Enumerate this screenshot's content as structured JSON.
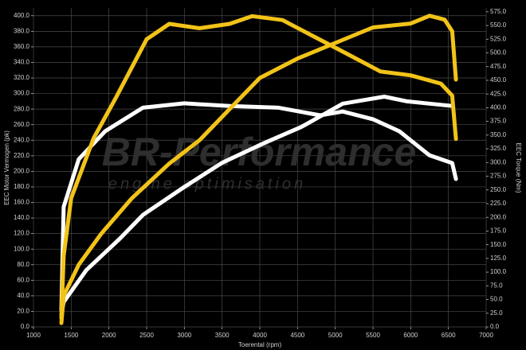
{
  "chart_data": {
    "type": "line",
    "xlabel": "Toerental (rpm)",
    "ylabel": "EEC Motor Vermogen (pk)",
    "y2label": "EEC Torque (Nm)",
    "watermark": [
      "BR-Performance",
      "engine optimisation"
    ],
    "grid": true,
    "xlim": [
      1000,
      7000
    ],
    "xticks": [
      1000,
      1500,
      2000,
      2500,
      3000,
      3500,
      4000,
      4500,
      5000,
      5500,
      6000,
      6500,
      7000
    ],
    "ylim": [
      0,
      410
    ],
    "yticks": [
      {
        "value": 0,
        "label": "0.0"
      },
      {
        "value": 20,
        "label": "20.0"
      },
      {
        "value": 40,
        "label": "40.0"
      },
      {
        "value": 60,
        "label": "60.0"
      },
      {
        "value": 80,
        "label": "80.0"
      },
      {
        "value": 100,
        "label": "100.0"
      },
      {
        "value": 120,
        "label": "120.0"
      },
      {
        "value": 140,
        "label": "140.0"
      },
      {
        "value": 160,
        "label": "160.0"
      },
      {
        "value": 180,
        "label": "180.0"
      },
      {
        "value": 200,
        "label": "200.0"
      },
      {
        "value": 220,
        "label": "220.0"
      },
      {
        "value": 240,
        "label": "240.0"
      },
      {
        "value": 260,
        "label": "260.0"
      },
      {
        "value": 280,
        "label": "280.0"
      },
      {
        "value": 300,
        "label": "300.0"
      },
      {
        "value": 320,
        "label": "320.0"
      },
      {
        "value": 340,
        "label": "340.0"
      },
      {
        "value": 360,
        "label": "360.0"
      },
      {
        "value": 380,
        "label": "380.0"
      },
      {
        "value": 400,
        "label": "400.0"
      }
    ],
    "y2lim": [
      0,
      582
    ],
    "y2ticks": [
      {
        "value": 0,
        "label": "0.0"
      },
      {
        "value": 25,
        "label": "25.0"
      },
      {
        "value": 50,
        "label": "50.0"
      },
      {
        "value": 75,
        "label": "75.0"
      },
      {
        "value": 100,
        "label": "100.0"
      },
      {
        "value": 125,
        "label": "125.0"
      },
      {
        "value": 150,
        "label": "150.0"
      },
      {
        "value": 175,
        "label": "175.0"
      },
      {
        "value": 200,
        "label": "200.0"
      },
      {
        "value": 225,
        "label": "225.0"
      },
      {
        "value": 250,
        "label": "250.0"
      },
      {
        "value": 275,
        "label": "275.0"
      },
      {
        "value": 300,
        "label": "300.0"
      },
      {
        "value": 325,
        "label": "325.0"
      },
      {
        "value": 350,
        "label": "350.0"
      },
      {
        "value": 375,
        "label": "375.0"
      },
      {
        "value": 400,
        "label": "400.0"
      },
      {
        "value": 425,
        "label": "425.0"
      },
      {
        "value": 450,
        "label": "450.0"
      },
      {
        "value": 475,
        "label": "475.0"
      },
      {
        "value": 500,
        "label": "500.0"
      },
      {
        "value": 525,
        "label": "525.0"
      },
      {
        "value": 550,
        "label": "550.0"
      },
      {
        "value": 575,
        "label": "575.0"
      }
    ],
    "series": [
      {
        "color": "#ffffff",
        "axis": "y",
        "x": [
          1370,
          1400,
          1700,
          2150,
          2450,
          3000,
          3500,
          4050,
          4550,
          5100,
          5650,
          5950,
          6250,
          6550
        ],
        "values": [
          16,
          32,
          73,
          114,
          144,
          180,
          211,
          236,
          257,
          287,
          296,
          290,
          287,
          284
        ]
      },
      {
        "color": "#ffffff",
        "axis": "y2",
        "x": [
          1370,
          1400,
          1600,
          1950,
          2450,
          3000,
          3600,
          4250,
          4800,
          5100,
          5500,
          5850,
          6250,
          6550,
          6600
        ],
        "values": [
          30,
          219,
          306,
          357,
          400,
          408,
          403,
          400,
          386,
          393,
          379,
          357,
          313,
          299,
          270
        ]
      },
      {
        "color": "#f2c318",
        "axis": "y",
        "x": [
          1370,
          1400,
          1600,
          1900,
          2300,
          2800,
          3200,
          3600,
          4000,
          4500,
          5000,
          5500,
          6000,
          6250,
          6450,
          6550,
          6600
        ],
        "values": [
          5,
          40,
          80,
          120,
          165,
          210,
          240,
          280,
          320,
          345,
          365,
          385,
          390,
          400,
          395,
          380,
          318
        ]
      },
      {
        "color": "#f2c318",
        "axis": "y2",
        "x": [
          1370,
          1400,
          1500,
          1800,
          2100,
          2500,
          2800,
          3200,
          3600,
          3900,
          4300,
          4800,
          5200,
          5600,
          6000,
          6400,
          6550,
          6600
        ],
        "values": [
          16,
          130,
          235,
          345,
          420,
          525,
          553,
          545,
          553,
          567,
          560,
          524,
          495,
          466,
          459,
          444,
          422,
          343
        ]
      }
    ]
  }
}
